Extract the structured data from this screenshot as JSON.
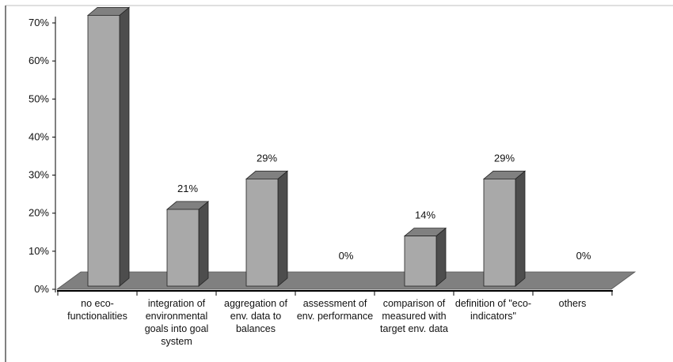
{
  "chart_data": {
    "type": "bar",
    "title": "",
    "xlabel": "",
    "ylabel": "",
    "ylim": [
      0,
      0.7
    ],
    "yticks": [
      "0%",
      "10%",
      "20%",
      "30%",
      "40%",
      "50%",
      "60%",
      "70%"
    ],
    "categories": [
      "no eco-functionalities",
      "integration of environmental goals into goal system",
      "aggregation of env. data to balances",
      "assessment of env. performance",
      "comparison of measured with target env. data",
      "definition of \"eco-indicators\"",
      "others"
    ],
    "values": [
      0.72,
      0.21,
      0.29,
      0.0,
      0.14,
      0.29,
      0.0
    ],
    "data_labels": [
      "",
      "21%",
      "29%",
      "0%",
      "14%",
      "29%",
      "0%"
    ],
    "colors": {
      "bar_front": "#a9a9a9",
      "bar_side": "#4d4d4d",
      "bar_top": "#808080",
      "floor": "#808080",
      "axis": "#000000"
    },
    "grid": false,
    "legend": "none",
    "style": "3d-column"
  }
}
